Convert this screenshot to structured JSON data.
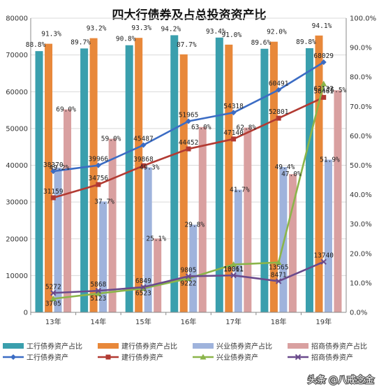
{
  "chart_data": {
    "type": "bar",
    "title": "四大行债券及占总投资资产比",
    "categories": [
      "13年",
      "14年",
      "15年",
      "16年",
      "17年",
      "18年",
      "19年"
    ],
    "y_left": {
      "range": [
        0,
        80000
      ],
      "ticks": [
        "0",
        "10000",
        "20000",
        "30000",
        "40000",
        "50000",
        "60000",
        "70000",
        "80000"
      ]
    },
    "y_right": {
      "range": [
        0,
        100
      ],
      "ticks": [
        "0.0%",
        "10.0%",
        "20.0%",
        "30.0%",
        "40.0%",
        "50.0%",
        "60.0%",
        "70.0%",
        "80.0%",
        "90.0%",
        "100.0%"
      ]
    },
    "grid": true,
    "legend_position": "bottom",
    "bar_series": [
      {
        "name": "工行债券资产占比",
        "color": "#3a9fad",
        "values": [
          88.8,
          89.7,
          90.8,
          94.2,
          93.4,
          89.6,
          89.8
        ],
        "labels": [
          "88.8%",
          "89.7%",
          "90.8%",
          "94.2%",
          "93.4%",
          "89.6%",
          "89.8%"
        ]
      },
      {
        "name": "建行债券资产占比",
        "color": "#e8883a",
        "values": [
          91.3,
          93.2,
          93.3,
          87.7,
          91.0,
          92.0,
          94.1
        ],
        "labels": [
          "91.3%",
          "93.2%",
          "93.3%",
          "87.7%",
          "91.0%",
          "92.0%",
          "94.1%"
        ]
      },
      {
        "name": "兴业债券资产占比",
        "color": "#9fb3dc",
        "values": [
          49.2,
          37.7,
          49.3,
          29.8,
          41.7,
          49.4,
          51.9
        ],
        "labels": [
          "49.2%",
          "37.7%",
          "49.3%",
          "29.8%",
          "41.7%",
          "49.4%",
          "51.9%"
        ]
      },
      {
        "name": "招商债券资产占比",
        "color": "#d9a0a0",
        "values": [
          69.0,
          59.0,
          25.1,
          63.0,
          62.8,
          47.0,
          75.5
        ],
        "labels": [
          "69.0%",
          "59.0%",
          "25.1%",
          "63.0%",
          "62.8%",
          "47.0%",
          "75.5%"
        ]
      }
    ],
    "line_series": [
      {
        "name": "工行债券资产",
        "color": "#3b6cc4",
        "marker": "diamond",
        "values": [
          38370,
          39966,
          45487,
          51965,
          54318,
          60491,
          68029
        ],
        "labels": [
          "38370",
          "39966",
          "45487",
          "51965",
          "54318",
          "60491",
          "68029"
        ]
      },
      {
        "name": "建行债券资产",
        "color": "#b23a32",
        "marker": "square",
        "values": [
          31159,
          34756,
          39868,
          44452,
          47140,
          52801,
          58461
        ],
        "labels": [
          "31159",
          "34756",
          "39868",
          "44452",
          "47140",
          "52801",
          "58461"
        ]
      },
      {
        "name": "兴业债券资产",
        "color": "#8bb54a",
        "marker": "triangle",
        "values": [
          3705,
          5123,
          6523,
          9222,
          13011,
          13565,
          62132
        ],
        "labels": [
          "3705",
          "5123",
          "6523",
          "9222",
          "13011",
          "13565",
          "62132"
        ]
      },
      {
        "name": "招商债券资产",
        "color": "#6a4a8c",
        "marker": "x",
        "values": [
          5272,
          5868,
          6849,
          9805,
          10061,
          8471,
          13740
        ],
        "labels": [
          "5272",
          "5868",
          "6849",
          "9805",
          "10061",
          "8471",
          "13740"
        ]
      }
    ]
  },
  "watermark": {
    "text": "头条 @八戒念金"
  }
}
